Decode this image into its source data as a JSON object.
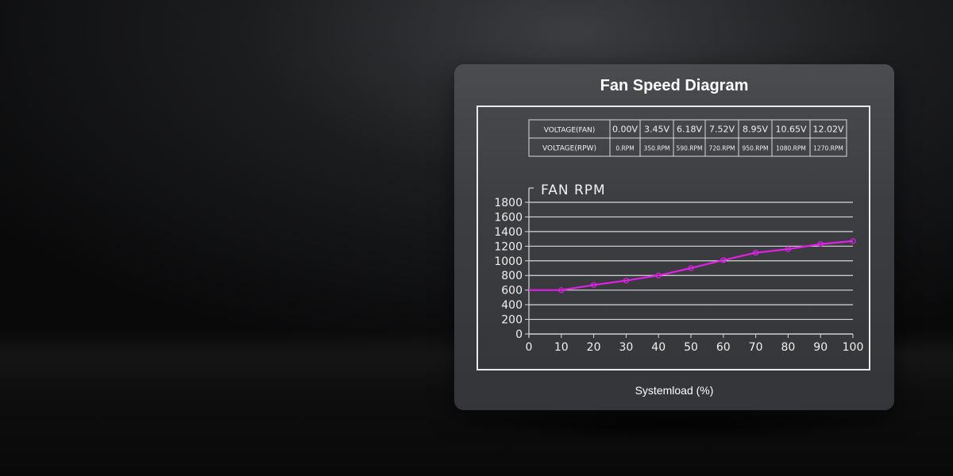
{
  "title": "Fan Speed Diagram",
  "table": {
    "rows": [
      {
        "label": "VOLTAGE(FAN)",
        "cells": [
          "0.00V",
          "3.45V",
          "6.18V",
          "7.52V",
          "8.95V",
          "10.65V",
          "12.02V"
        ]
      },
      {
        "label": "VOLTAGE(RPW)",
        "cells": [
          "0.RPM",
          "350.RPM",
          "590.RPM",
          "720.RPM",
          "950.RPM",
          "1080.RPM",
          "1270.RPM"
        ]
      }
    ]
  },
  "colors": {
    "line": "#e020e8",
    "grid": "#d8d8d8",
    "text": "#f0f0f0"
  },
  "chart_data": {
    "type": "line",
    "title": "Fan Speed Diagram",
    "ylabel": "FAN RPM",
    "xlabel": "Systemload (%)",
    "xlim": [
      0,
      100
    ],
    "ylim": [
      0,
      1800
    ],
    "xticks": [
      0,
      10,
      20,
      30,
      40,
      50,
      60,
      70,
      80,
      90,
      100
    ],
    "yticks": [
      0,
      200,
      400,
      600,
      800,
      1000,
      1200,
      1400,
      1600,
      1800
    ],
    "grid": true,
    "series": [
      {
        "x": [
          0,
          10,
          20,
          30,
          40,
          50,
          60,
          70,
          80,
          90,
          100
        ],
        "y": [
          600,
          600,
          670,
          730,
          800,
          900,
          1010,
          1110,
          1160,
          1230,
          1270
        ],
        "markers": [
          10,
          20,
          30,
          40,
          50,
          60,
          70,
          80,
          90,
          100
        ]
      }
    ]
  }
}
